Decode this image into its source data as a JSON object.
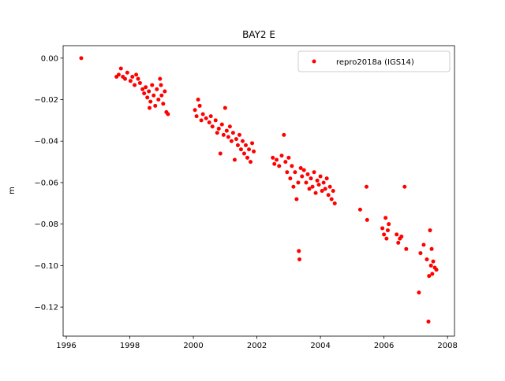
{
  "chart_data": {
    "type": "scatter",
    "title": "BAY2 E",
    "y_label": "m",
    "x": [
      1996.47,
      1997.58,
      1997.65,
      1997.72,
      1997.78,
      1997.85,
      1997.92,
      1998.02,
      1998.08,
      1998.15,
      1998.2,
      1998.26,
      1998.32,
      1998.4,
      1998.45,
      1998.5,
      1998.55,
      1998.6,
      1998.65,
      1998.7,
      1998.75,
      1998.8,
      1998.85,
      1998.9,
      1998.95,
      1999.0,
      1999.05,
      1999.1,
      1999.15,
      1999.2,
      1998.62,
      1998.98,
      2000.05,
      2000.1,
      2000.15,
      2000.2,
      2000.25,
      2000.3,
      2000.4,
      2000.5,
      2000.55,
      2000.6,
      2000.7,
      2000.75,
      2000.8,
      2000.85,
      2000.9,
      2000.95,
      2001.0,
      2001.05,
      2001.1,
      2001.15,
      2001.2,
      2001.25,
      2001.3,
      2001.35,
      2001.4,
      2001.45,
      2001.5,
      2001.55,
      2001.6,
      2001.65,
      2001.7,
      2001.75,
      2001.8,
      2001.85,
      2001.9,
      2002.5,
      2002.55,
      2002.62,
      2002.7,
      2002.78,
      2002.85,
      2002.9,
      2002.95,
      2003.0,
      2003.05,
      2003.1,
      2003.15,
      2003.2,
      2003.25,
      2003.3,
      2003.32,
      2003.34,
      2003.38,
      2003.42,
      2003.48,
      2003.55,
      2003.6,
      2003.65,
      2003.7,
      2003.75,
      2003.8,
      2003.85,
      2003.9,
      2003.95,
      2004.0,
      2004.05,
      2004.1,
      2004.15,
      2004.2,
      2004.25,
      2004.3,
      2004.35,
      2004.4,
      2004.45,
      2005.25,
      2005.45,
      2005.47,
      2005.95,
      2006.0,
      2006.05,
      2006.08,
      2006.12,
      2006.15,
      2006.4,
      2006.45,
      2006.5,
      2006.55,
      2006.65,
      2006.7,
      2007.1,
      2007.15,
      2007.25,
      2007.35,
      2007.4,
      2007.42,
      2007.45,
      2007.48,
      2007.5,
      2007.52,
      2007.55,
      2007.6,
      2007.65
    ],
    "series": [
      {
        "name": "repro2018a (IGS14)",
        "color": "#ff0000",
        "values": [
          0.0,
          -0.009,
          -0.008,
          -0.005,
          -0.009,
          -0.01,
          -0.007,
          -0.011,
          -0.009,
          -0.013,
          -0.008,
          -0.01,
          -0.012,
          -0.015,
          -0.017,
          -0.014,
          -0.019,
          -0.016,
          -0.021,
          -0.013,
          -0.018,
          -0.023,
          -0.015,
          -0.02,
          -0.01,
          -0.018,
          -0.022,
          -0.016,
          -0.026,
          -0.027,
          -0.024,
          -0.013,
          -0.025,
          -0.028,
          -0.02,
          -0.023,
          -0.03,
          -0.027,
          -0.029,
          -0.031,
          -0.028,
          -0.033,
          -0.03,
          -0.036,
          -0.034,
          -0.046,
          -0.032,
          -0.037,
          -0.024,
          -0.035,
          -0.038,
          -0.033,
          -0.04,
          -0.036,
          -0.049,
          -0.039,
          -0.042,
          -0.037,
          -0.044,
          -0.04,
          -0.046,
          -0.042,
          -0.048,
          -0.044,
          -0.05,
          -0.041,
          -0.045,
          -0.048,
          -0.051,
          -0.049,
          -0.052,
          -0.047,
          -0.037,
          -0.05,
          -0.055,
          -0.048,
          -0.058,
          -0.052,
          -0.062,
          -0.055,
          -0.068,
          -0.06,
          -0.093,
          -0.097,
          -0.053,
          -0.057,
          -0.054,
          -0.06,
          -0.056,
          -0.063,
          -0.058,
          -0.062,
          -0.055,
          -0.065,
          -0.059,
          -0.061,
          -0.057,
          -0.064,
          -0.06,
          -0.063,
          -0.058,
          -0.066,
          -0.062,
          -0.068,
          -0.064,
          -0.07,
          -0.073,
          -0.062,
          -0.078,
          -0.082,
          -0.085,
          -0.077,
          -0.087,
          -0.083,
          -0.08,
          -0.085,
          -0.089,
          -0.087,
          -0.086,
          -0.062,
          -0.092,
          -0.113,
          -0.094,
          -0.09,
          -0.097,
          -0.127,
          -0.105,
          -0.083,
          -0.1,
          -0.092,
          -0.104,
          -0.098,
          -0.101,
          -0.102
        ]
      }
    ],
    "xlim": [
      1995.9,
      2008.22
    ],
    "ylim": [
      -0.134,
      0.006
    ],
    "xticks": [
      1996,
      1998,
      2000,
      2002,
      2004,
      2006,
      2008
    ],
    "yticks": [
      {
        "value": 0,
        "label": "0.00"
      },
      {
        "value": -0.02,
        "label": "−0.02"
      },
      {
        "value": -0.04,
        "label": "−0.04"
      },
      {
        "value": -0.06,
        "label": "−0.06"
      },
      {
        "value": -0.08,
        "label": "−0.08"
      },
      {
        "value": -0.1,
        "label": "−0.10"
      },
      {
        "value": -0.12,
        "label": "−0.12"
      }
    ],
    "legend": "upper right"
  }
}
